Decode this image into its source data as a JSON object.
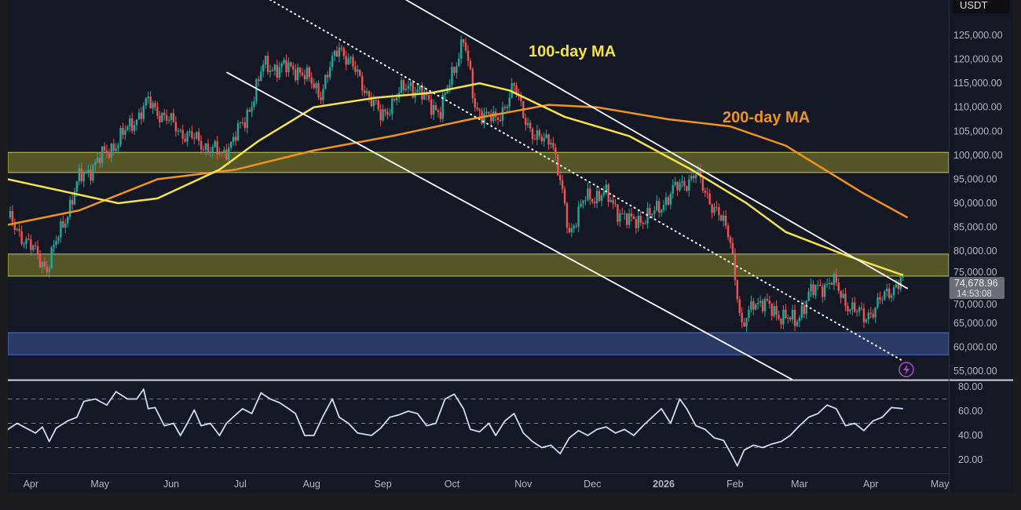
{
  "chart_data": {
    "type": "candlestick",
    "symbol_quote": "USDT",
    "start_date": "2025-03-22",
    "last_price": "74,678.96",
    "countdown": "14:53:08",
    "price_axis": {
      "ylim": [
        52000,
        133000
      ],
      "ticks": [
        "125,000.00",
        "120,000.00",
        "115,000.00",
        "110,000.00",
        "105,000.00",
        "100,000.00",
        "95,000.00",
        "90,000.00",
        "85,000.00",
        "80,000.00",
        "75,000.00",
        "70,000.00",
        "65,000.00",
        "60,000.00",
        "55,000.00"
      ],
      "tick_values": [
        125000,
        120000,
        115000,
        110000,
        105000,
        100000,
        95000,
        90000,
        85000,
        80000,
        75000,
        70000,
        65000,
        60000,
        55000
      ]
    },
    "time_axis": [
      {
        "label": "Apr",
        "day": 10
      },
      {
        "label": "May",
        "day": 40
      },
      {
        "label": "Jun",
        "day": 71
      },
      {
        "label": "Jul",
        "day": 101
      },
      {
        "label": "Aug",
        "day": 132
      },
      {
        "label": "Sep",
        "day": 163
      },
      {
        "label": "Oct",
        "day": 193
      },
      {
        "label": "Nov",
        "day": 224
      },
      {
        "label": "Dec",
        "day": 254
      },
      {
        "label": "2026",
        "day": 285,
        "bold": true
      },
      {
        "label": "Feb",
        "day": 316
      },
      {
        "label": "Mar",
        "day": 344
      },
      {
        "label": "Apr",
        "day": 375
      },
      {
        "label": "May",
        "day": 405
      }
    ],
    "price_keypoints": [
      [
        0,
        87000
      ],
      [
        17,
        76500
      ],
      [
        31,
        95000
      ],
      [
        48,
        103000
      ],
      [
        61,
        111000
      ],
      [
        75,
        105000
      ],
      [
        93,
        100000
      ],
      [
        103,
        107000
      ],
      [
        111,
        118500
      ],
      [
        126,
        118000
      ],
      [
        136,
        113000
      ],
      [
        144,
        123000
      ],
      [
        154,
        115000
      ],
      [
        162,
        108000
      ],
      [
        174,
        115000
      ],
      [
        188,
        109000
      ],
      [
        198,
        124500
      ],
      [
        203,
        110000
      ],
      [
        212,
        107000
      ],
      [
        220,
        114000
      ],
      [
        229,
        103000
      ],
      [
        236,
        104000
      ],
      [
        244,
        84000
      ],
      [
        251,
        91000
      ],
      [
        259,
        92000
      ],
      [
        270,
        86000
      ],
      [
        280,
        87500
      ],
      [
        290,
        93000
      ],
      [
        299,
        96000
      ],
      [
        307,
        89000
      ],
      [
        314,
        83000
      ],
      [
        319,
        63000
      ],
      [
        324,
        70000
      ],
      [
        335,
        67000
      ],
      [
        342,
        65000
      ],
      [
        348,
        71000
      ],
      [
        358,
        74000
      ],
      [
        363,
        70000
      ],
      [
        372,
        66000
      ],
      [
        382,
        71000
      ],
      [
        389,
        74679
      ]
    ],
    "ma100": {
      "label": "100-day MA",
      "color": "#f5e14a",
      "points": [
        [
          0,
          95000
        ],
        [
          48,
          90000
        ],
        [
          65,
          91000
        ],
        [
          92,
          97000
        ],
        [
          109,
          103000
        ],
        [
          133,
          110000
        ],
        [
          160,
          112000
        ],
        [
          184,
          113000
        ],
        [
          205,
          115000
        ],
        [
          218,
          113500
        ],
        [
          242,
          108000
        ],
        [
          270,
          104000
        ],
        [
          297,
          97000
        ],
        [
          321,
          90000
        ],
        [
          338,
          84000
        ],
        [
          365,
          79000
        ],
        [
          389,
          75000
        ]
      ]
    },
    "ma200": {
      "label": "200-day MA",
      "color": "#f0931e",
      "points": [
        [
          0,
          85500
        ],
        [
          31,
          88500
        ],
        [
          65,
          95000
        ],
        [
          99,
          97000
        ],
        [
          133,
          101000
        ],
        [
          167,
          104000
        ],
        [
          201,
          107500
        ],
        [
          235,
          110500
        ],
        [
          256,
          110000
        ],
        [
          287,
          107500
        ],
        [
          314,
          106000
        ],
        [
          338,
          102000
        ],
        [
          372,
          92000
        ],
        [
          391,
          87000
        ]
      ]
    },
    "zones": [
      {
        "name": "resistance-zone",
        "from": 96400,
        "to": 100600,
        "color": "#8a8a2a"
      },
      {
        "name": "ma-cross-zone",
        "from": 74800,
        "to": 79400,
        "color": "#8a8a2a"
      },
      {
        "name": "support-zone",
        "from": 58400,
        "to": 63000,
        "color": "#3a5a9a"
      }
    ],
    "trendlines": [
      {
        "name": "channel-upper",
        "style": "solid",
        "p1": [
          173,
          132400
        ],
        "p2": [
          391,
          72200
        ]
      },
      {
        "name": "channel-lower",
        "style": "solid",
        "p1": [
          95,
          117300
        ],
        "p2": [
          341,
          53200
        ]
      },
      {
        "name": "channel-mid",
        "style": "dotted",
        "p1": [
          114,
          132400
        ],
        "p2": [
          389,
          57100
        ]
      }
    ],
    "rsi": {
      "ylim": [
        10,
        85
      ],
      "levels": [
        70,
        50,
        30
      ],
      "ticks": [
        "80.00",
        "60.00",
        "40.00",
        "20.00"
      ],
      "tick_values": [
        80,
        60,
        40,
        20
      ],
      "points": [
        [
          0,
          45
        ],
        [
          4,
          50
        ],
        [
          8,
          46
        ],
        [
          12,
          42
        ],
        [
          15,
          47
        ],
        [
          18,
          35
        ],
        [
          21,
          46
        ],
        [
          26,
          52
        ],
        [
          30,
          55
        ],
        [
          33,
          68
        ],
        [
          38,
          70
        ],
        [
          43,
          65
        ],
        [
          47,
          76
        ],
        [
          52,
          70
        ],
        [
          56,
          70
        ],
        [
          59,
          78
        ],
        [
          61,
          62
        ],
        [
          64,
          63
        ],
        [
          68,
          48
        ],
        [
          72,
          50
        ],
        [
          75,
          40
        ],
        [
          78,
          50
        ],
        [
          81,
          61
        ],
        [
          84,
          48
        ],
        [
          88,
          50
        ],
        [
          92,
          40
        ],
        [
          95,
          50
        ],
        [
          99,
          57
        ],
        [
          102,
          62
        ],
        [
          106,
          58
        ],
        [
          110,
          75
        ],
        [
          114,
          70
        ],
        [
          118,
          67
        ],
        [
          122,
          62
        ],
        [
          125,
          58
        ],
        [
          129,
          40
        ],
        [
          133,
          40
        ],
        [
          137,
          56
        ],
        [
          141,
          70
        ],
        [
          144,
          55
        ],
        [
          148,
          50
        ],
        [
          152,
          42
        ],
        [
          158,
          40
        ],
        [
          162,
          46
        ],
        [
          166,
          55
        ],
        [
          170,
          57
        ],
        [
          174,
          60
        ],
        [
          178,
          58
        ],
        [
          182,
          48
        ],
        [
          186,
          50
        ],
        [
          190,
          70
        ],
        [
          194,
          74
        ],
        [
          198,
          62
        ],
        [
          201,
          45
        ],
        [
          205,
          43
        ],
        [
          209,
          50
        ],
        [
          212,
          40
        ],
        [
          216,
          52
        ],
        [
          220,
          58
        ],
        [
          224,
          42
        ],
        [
          228,
          35
        ],
        [
          232,
          30
        ],
        [
          236,
          32
        ],
        [
          240,
          25
        ],
        [
          244,
          38
        ],
        [
          248,
          44
        ],
        [
          252,
          40
        ],
        [
          256,
          45
        ],
        [
          260,
          47
        ],
        [
          264,
          42
        ],
        [
          268,
          45
        ],
        [
          272,
          40
        ],
        [
          276,
          48
        ],
        [
          280,
          55
        ],
        [
          284,
          62
        ],
        [
          288,
          50
        ],
        [
          292,
          70
        ],
        [
          295,
          62
        ],
        [
          299,
          48
        ],
        [
          303,
          45
        ],
        [
          307,
          38
        ],
        [
          311,
          36
        ],
        [
          314,
          26
        ],
        [
          317,
          15
        ],
        [
          320,
          28
        ],
        [
          324,
          32
        ],
        [
          328,
          30
        ],
        [
          332,
          33
        ],
        [
          336,
          35
        ],
        [
          340,
          40
        ],
        [
          344,
          48
        ],
        [
          348,
          55
        ],
        [
          352,
          58
        ],
        [
          356,
          65
        ],
        [
          360,
          62
        ],
        [
          364,
          48
        ],
        [
          368,
          50
        ],
        [
          372,
          44
        ],
        [
          376,
          52
        ],
        [
          380,
          55
        ],
        [
          384,
          63
        ],
        [
          389,
          62
        ]
      ]
    },
    "annotations": [
      {
        "text": "100-day MA",
        "color": "#f5e14a"
      },
      {
        "text": "200-day MA",
        "color": "#f0931e"
      }
    ],
    "colors": {
      "up": "#26a69a",
      "down": "#ef5350",
      "background": "#141824",
      "grid": "#1f2330",
      "rsi_line": "#c9dcf5",
      "trendline": "#ffffff",
      "alert": "#b34ad6"
    }
  }
}
